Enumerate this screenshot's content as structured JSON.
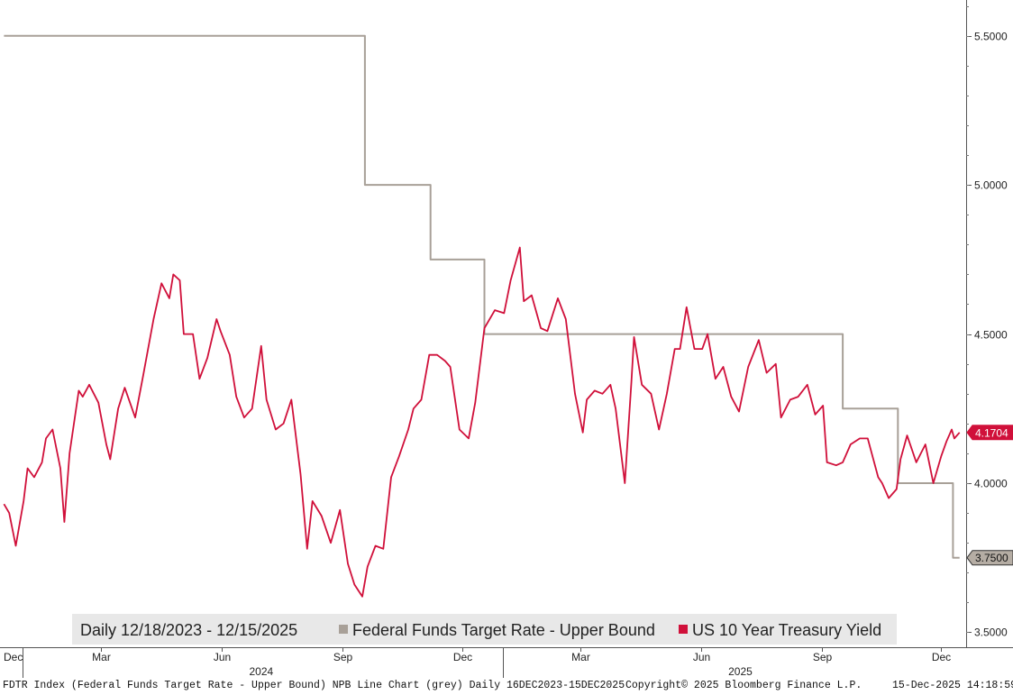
{
  "chart_data": {
    "type": "line",
    "period_label": "Daily 12/18/2023 - 12/15/2025",
    "y_axis": {
      "ticks": [
        3.5,
        4.0,
        4.5,
        5.0,
        5.5
      ],
      "tick_labels": [
        "3.5000",
        "4.0000",
        "4.5000",
        "5.0000",
        "5.5000"
      ],
      "ylim": [
        3.45,
        5.62
      ],
      "position": "right"
    },
    "x_axis": {
      "xlim": [
        "2023-12-15",
        "2025-12-20"
      ],
      "month_ticks": [
        {
          "date": "2023-12-01",
          "label": "Dec"
        },
        {
          "date": "2024-03-01",
          "label": "Mar"
        },
        {
          "date": "2024-06-01",
          "label": "Jun"
        },
        {
          "date": "2024-09-01",
          "label": "Sep"
        },
        {
          "date": "2024-12-01",
          "label": "Dec"
        },
        {
          "date": "2025-03-01",
          "label": "Mar"
        },
        {
          "date": "2025-06-01",
          "label": "Jun"
        },
        {
          "date": "2025-09-01",
          "label": "Sep"
        },
        {
          "date": "2025-12-01",
          "label": "Dec"
        }
      ],
      "year_labels": [
        {
          "date": "2024-07-01",
          "label": "2024"
        },
        {
          "date": "2025-07-01",
          "label": "2025"
        }
      ],
      "year_dividers": [
        "2024-01-01",
        "2025-01-01"
      ]
    },
    "series": [
      {
        "name": "Federal Funds Target Rate - Upper Bound",
        "color": "#a8a098",
        "kind": "step",
        "last_value_label": "3.7500",
        "points": [
          [
            "2023-12-18",
            5.5
          ],
          [
            "2024-09-18",
            5.0
          ],
          [
            "2024-11-07",
            4.75
          ],
          [
            "2024-12-18",
            4.5
          ],
          [
            "2025-09-17",
            4.25
          ],
          [
            "2025-10-29",
            4.0
          ],
          [
            "2025-12-10",
            3.75
          ],
          [
            "2025-12-15",
            3.75
          ]
        ]
      },
      {
        "name": "US 10 Year Treasury Yield",
        "color": "#d0103a",
        "kind": "line",
        "last_value_label": "4.1704",
        "points": [
          [
            "2023-12-18",
            3.93
          ],
          [
            "2023-12-22",
            3.9
          ],
          [
            "2023-12-27",
            3.79
          ],
          [
            "2024-01-02",
            3.94
          ],
          [
            "2024-01-05",
            4.05
          ],
          [
            "2024-01-10",
            4.02
          ],
          [
            "2024-01-16",
            4.07
          ],
          [
            "2024-01-19",
            4.15
          ],
          [
            "2024-01-24",
            4.18
          ],
          [
            "2024-01-30",
            4.05
          ],
          [
            "2024-02-02",
            3.87
          ],
          [
            "2024-02-06",
            4.1
          ],
          [
            "2024-02-13",
            4.31
          ],
          [
            "2024-02-16",
            4.29
          ],
          [
            "2024-02-21",
            4.33
          ],
          [
            "2024-02-28",
            4.27
          ],
          [
            "2024-03-05",
            4.13
          ],
          [
            "2024-03-08",
            4.08
          ],
          [
            "2024-03-14",
            4.25
          ],
          [
            "2024-03-19",
            4.32
          ],
          [
            "2024-03-27",
            4.22
          ],
          [
            "2024-04-02",
            4.36
          ],
          [
            "2024-04-10",
            4.55
          ],
          [
            "2024-04-16",
            4.67
          ],
          [
            "2024-04-22",
            4.62
          ],
          [
            "2024-04-25",
            4.7
          ],
          [
            "2024-04-30",
            4.68
          ],
          [
            "2024-05-03",
            4.5
          ],
          [
            "2024-05-10",
            4.5
          ],
          [
            "2024-05-15",
            4.35
          ],
          [
            "2024-05-21",
            4.42
          ],
          [
            "2024-05-28",
            4.55
          ],
          [
            "2024-05-31",
            4.51
          ],
          [
            "2024-06-07",
            4.43
          ],
          [
            "2024-06-12",
            4.29
          ],
          [
            "2024-06-18",
            4.22
          ],
          [
            "2024-06-24",
            4.25
          ],
          [
            "2024-07-01",
            4.46
          ],
          [
            "2024-07-05",
            4.28
          ],
          [
            "2024-07-12",
            4.18
          ],
          [
            "2024-07-18",
            4.2
          ],
          [
            "2024-07-24",
            4.28
          ],
          [
            "2024-07-31",
            4.03
          ],
          [
            "2024-08-05",
            3.78
          ],
          [
            "2024-08-09",
            3.94
          ],
          [
            "2024-08-16",
            3.89
          ],
          [
            "2024-08-23",
            3.8
          ],
          [
            "2024-08-30",
            3.91
          ],
          [
            "2024-09-05",
            3.73
          ],
          [
            "2024-09-10",
            3.66
          ],
          [
            "2024-09-16",
            3.62
          ],
          [
            "2024-09-20",
            3.72
          ],
          [
            "2024-09-26",
            3.79
          ],
          [
            "2024-10-02",
            3.78
          ],
          [
            "2024-10-08",
            4.02
          ],
          [
            "2024-10-14",
            4.09
          ],
          [
            "2024-10-21",
            4.18
          ],
          [
            "2024-10-25",
            4.25
          ],
          [
            "2024-10-31",
            4.28
          ],
          [
            "2024-11-06",
            4.43
          ],
          [
            "2024-11-12",
            4.43
          ],
          [
            "2024-11-18",
            4.41
          ],
          [
            "2024-11-22",
            4.39
          ],
          [
            "2024-11-29",
            4.18
          ],
          [
            "2024-12-06",
            4.15
          ],
          [
            "2024-12-11",
            4.27
          ],
          [
            "2024-12-18",
            4.52
          ],
          [
            "2024-12-26",
            4.58
          ],
          [
            "2025-01-02",
            4.57
          ],
          [
            "2025-01-07",
            4.68
          ],
          [
            "2025-01-14",
            4.79
          ],
          [
            "2025-01-17",
            4.61
          ],
          [
            "2025-01-23",
            4.63
          ],
          [
            "2025-01-30",
            4.52
          ],
          [
            "2025-02-04",
            4.51
          ],
          [
            "2025-02-12",
            4.62
          ],
          [
            "2025-02-18",
            4.55
          ],
          [
            "2025-02-25",
            4.3
          ],
          [
            "2025-03-03",
            4.17
          ],
          [
            "2025-03-06",
            4.28
          ],
          [
            "2025-03-12",
            4.31
          ],
          [
            "2025-03-18",
            4.3
          ],
          [
            "2025-03-24",
            4.33
          ],
          [
            "2025-03-28",
            4.25
          ],
          [
            "2025-04-04",
            4.0
          ],
          [
            "2025-04-09",
            4.34
          ],
          [
            "2025-04-11",
            4.49
          ],
          [
            "2025-04-17",
            4.33
          ],
          [
            "2025-04-24",
            4.3
          ],
          [
            "2025-04-30",
            4.18
          ],
          [
            "2025-05-06",
            4.3
          ],
          [
            "2025-05-12",
            4.45
          ],
          [
            "2025-05-16",
            4.45
          ],
          [
            "2025-05-21",
            4.59
          ],
          [
            "2025-05-27",
            4.45
          ],
          [
            "2025-06-02",
            4.45
          ],
          [
            "2025-06-06",
            4.5
          ],
          [
            "2025-06-12",
            4.35
          ],
          [
            "2025-06-18",
            4.39
          ],
          [
            "2025-06-24",
            4.29
          ],
          [
            "2025-06-30",
            4.24
          ],
          [
            "2025-07-07",
            4.39
          ],
          [
            "2025-07-15",
            4.48
          ],
          [
            "2025-07-21",
            4.37
          ],
          [
            "2025-07-28",
            4.4
          ],
          [
            "2025-08-01",
            4.22
          ],
          [
            "2025-08-08",
            4.28
          ],
          [
            "2025-08-14",
            4.29
          ],
          [
            "2025-08-21",
            4.33
          ],
          [
            "2025-08-27",
            4.23
          ],
          [
            "2025-09-02",
            4.26
          ],
          [
            "2025-09-05",
            4.07
          ],
          [
            "2025-09-12",
            4.06
          ],
          [
            "2025-09-17",
            4.07
          ],
          [
            "2025-09-23",
            4.13
          ],
          [
            "2025-09-30",
            4.15
          ],
          [
            "2025-10-06",
            4.15
          ],
          [
            "2025-10-14",
            4.02
          ],
          [
            "2025-10-17",
            4.0
          ],
          [
            "2025-10-22",
            3.95
          ],
          [
            "2025-10-28",
            3.98
          ],
          [
            "2025-10-31",
            4.08
          ],
          [
            "2025-11-05",
            4.16
          ],
          [
            "2025-11-12",
            4.07
          ],
          [
            "2025-11-19",
            4.13
          ],
          [
            "2025-11-25",
            4.0
          ],
          [
            "2025-12-01",
            4.09
          ],
          [
            "2025-12-05",
            4.14
          ],
          [
            "2025-12-09",
            4.18
          ],
          [
            "2025-12-11",
            4.15
          ],
          [
            "2025-12-15",
            4.17
          ]
        ]
      }
    ],
    "legend_position": "bottom",
    "grid": false
  },
  "footer": {
    "left": "FDTR Index (Federal Funds Target Rate - Upper Bound) NPB Line Chart (grey) Daily 16DEC2023-15DEC2025",
    "center": "Copyright© 2025 Bloomberg Finance L.P.",
    "right": "15-Dec-2025 14:18:59"
  }
}
